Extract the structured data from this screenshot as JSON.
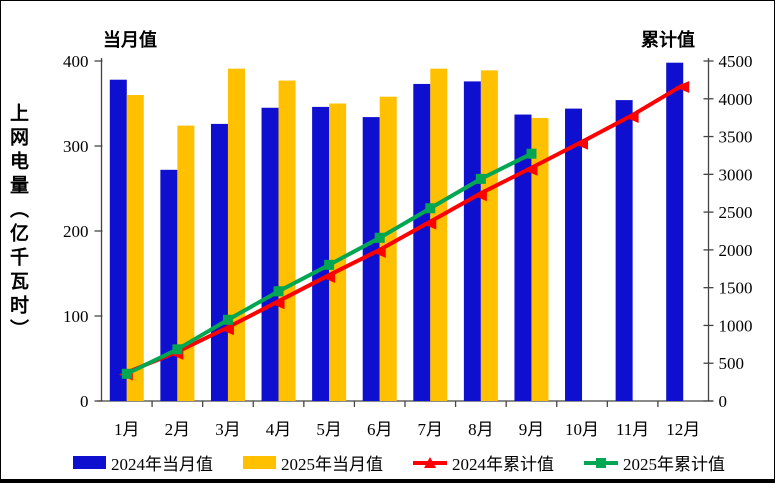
{
  "titles": {
    "left_axis_caption": "当月值",
    "right_axis_caption": "累计值",
    "y_axis_title": "上网电量（亿千瓦时）"
  },
  "colors": {
    "bar_2024": "#0f0fcf",
    "bar_2025": "#ffc000",
    "line_2024": "#ff0000",
    "line_2025": "#00a651",
    "axis": "#444444",
    "text": "#000000",
    "frame_border": "#000000",
    "background": "#ffffff"
  },
  "chart_data": {
    "type": "combo-bar-line",
    "categories": [
      "1月",
      "2月",
      "3月",
      "4月",
      "5月",
      "6月",
      "7月",
      "8月",
      "9月",
      "10月",
      "11月",
      "12月"
    ],
    "left_axis": {
      "caption": "当月值",
      "label": "上网电量（亿千瓦时）",
      "min": 0,
      "max": 400,
      "ticks": [
        0,
        100,
        200,
        300,
        400
      ]
    },
    "right_axis": {
      "caption": "累计值",
      "min": 0,
      "max": 4500,
      "ticks": [
        0,
        500,
        1000,
        1500,
        2000,
        2500,
        3000,
        3500,
        4000,
        4500
      ]
    },
    "grid": false,
    "legend_position": "bottom",
    "series": [
      {
        "name": "2024年当月值",
        "type": "bar",
        "axis": "left",
        "color_key": "bar_2024",
        "values": [
          378,
          272,
          326,
          345,
          346,
          334,
          373,
          376,
          337,
          344,
          354,
          398
        ]
      },
      {
        "name": "2025年当月值",
        "type": "bar",
        "axis": "left",
        "color_key": "bar_2025",
        "values": [
          360,
          324,
          391,
          377,
          350,
          358,
          391,
          389,
          333
        ]
      },
      {
        "name": "2024年累计值",
        "type": "line",
        "marker": "triangle",
        "axis": "right",
        "color_key": "line_2024",
        "values": [
          378,
          650,
          976,
          1321,
          1667,
          2001,
          2374,
          2750,
          3087,
          3431,
          3785,
          4183
        ]
      },
      {
        "name": "2025年累计值",
        "type": "line",
        "marker": "square",
        "axis": "right",
        "color_key": "line_2025",
        "values": [
          360,
          684,
          1075,
          1452,
          1802,
          2160,
          2551,
          2940,
          3273
        ]
      }
    ]
  },
  "legend": {
    "items": [
      {
        "label": "2024年当月值",
        "swatch": "bar",
        "color_key": "bar_2024"
      },
      {
        "label": "2025年当月值",
        "swatch": "bar",
        "color_key": "bar_2025"
      },
      {
        "label": "2024年累计值",
        "swatch": "line-triangle",
        "color_key": "line_2024"
      },
      {
        "label": "2025年累计值",
        "swatch": "line-square",
        "color_key": "line_2025"
      }
    ]
  }
}
